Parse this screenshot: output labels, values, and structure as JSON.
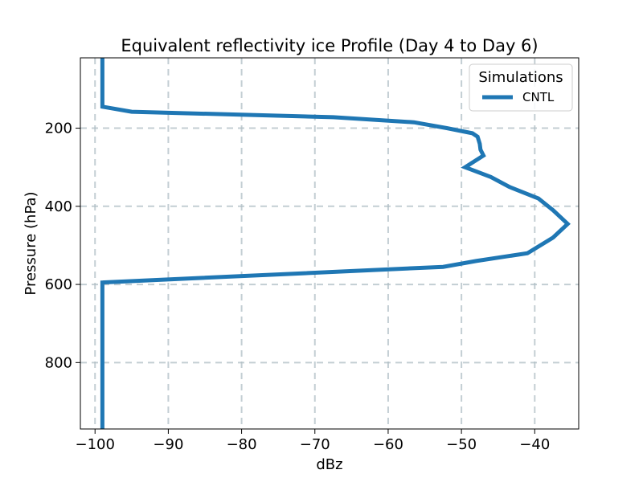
{
  "chart_data": {
    "type": "line",
    "title": "Equivalent reflectivity ice Profile (Day 4 to Day 6)",
    "xlabel": "dBz",
    "ylabel": "Pressure (hPa)",
    "xlim": [
      -102,
      -34
    ],
    "ylim": [
      970,
      20
    ],
    "y_inverted": true,
    "grid": true,
    "xticks": [
      -100,
      -90,
      -80,
      -70,
      -60,
      -50,
      -40
    ],
    "xtick_labels": [
      "−100",
      "−90",
      "−80",
      "−70",
      "−60",
      "−50",
      "−40"
    ],
    "yticks": [
      200,
      400,
      600,
      800
    ],
    "ytick_labels": [
      "200",
      "400",
      "600",
      "800"
    ],
    "legend": {
      "title": "Simulations",
      "placement": "top-right"
    },
    "series": [
      {
        "name": "CNTL",
        "color": "#1f77b4",
        "points": [
          [
            -99,
            20
          ],
          [
            -99,
            145
          ],
          [
            -95,
            158
          ],
          [
            -67.5,
            172
          ],
          [
            -56.5,
            185
          ],
          [
            -52,
            200
          ],
          [
            -48.5,
            213
          ],
          [
            -47.8,
            222
          ],
          [
            -47.5,
            240
          ],
          [
            -47.4,
            255
          ],
          [
            -47,
            270
          ],
          [
            -49.5,
            300
          ],
          [
            -46,
            325
          ],
          [
            -43.5,
            350
          ],
          [
            -39.5,
            380
          ],
          [
            -37.5,
            410
          ],
          [
            -35.5,
            445
          ],
          [
            -37.5,
            480
          ],
          [
            -41,
            520
          ],
          [
            -48,
            540
          ],
          [
            -52.5,
            555
          ],
          [
            -99,
            595
          ],
          [
            -99,
            970
          ]
        ]
      }
    ]
  }
}
